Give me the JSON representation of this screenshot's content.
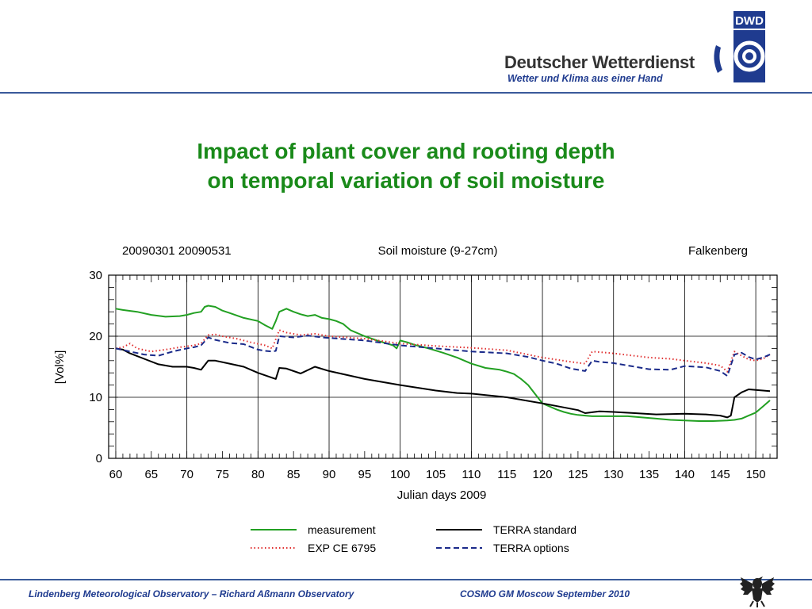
{
  "header": {
    "brand_name": "Deutscher Wetterdienst",
    "tagline": "Wetter und Klima aus einer Hand",
    "logo_text": "DWD",
    "accent_color": "#1f3b8f"
  },
  "slide": {
    "title_line1": "Impact of plant cover and rooting depth",
    "title_line2": "on temporal variation of soil moisture",
    "title_color": "#1a8a1a"
  },
  "chart_data": {
    "type": "line",
    "header_left": "20090301 20090531",
    "header_center": "Soil moisture (9-27cm)",
    "header_right": "Falkenberg",
    "xlabel": "Julian days 2009",
    "ylabel": "[Vol%]",
    "xlim": [
      59,
      153
    ],
    "ylim": [
      0,
      30
    ],
    "xticks": [
      60,
      65,
      70,
      75,
      80,
      85,
      90,
      95,
      100,
      105,
      110,
      115,
      120,
      125,
      130,
      135,
      140,
      145,
      150
    ],
    "yticks": [
      0,
      10,
      20,
      30
    ],
    "grid": true,
    "legend_position": "bottom",
    "series": [
      {
        "name": "measurement",
        "color": "#22a022",
        "style": "solid",
        "x": [
          60,
          61,
          63,
          65,
          67,
          69,
          70,
          71,
          72,
          72.5,
          73,
          74,
          75,
          76,
          78,
          80,
          81,
          82,
          82.5,
          83,
          84,
          85,
          86,
          87,
          88,
          89,
          90,
          91,
          92,
          93,
          95,
          97,
          99,
          99.5,
          100,
          101,
          102,
          104,
          106,
          108,
          110,
          112,
          114,
          115,
          116,
          117,
          118,
          119,
          120,
          121,
          122,
          123,
          124,
          125,
          126,
          127,
          128,
          130,
          132,
          134,
          136,
          138,
          140,
          142,
          144,
          146,
          147,
          148,
          149,
          150,
          151,
          152
        ],
        "y": [
          24.5,
          24.3,
          24.0,
          23.5,
          23.2,
          23.3,
          23.5,
          23.8,
          24.0,
          24.8,
          25.0,
          24.8,
          24.2,
          23.8,
          23.0,
          22.5,
          21.8,
          21.2,
          22.5,
          24.0,
          24.5,
          24.0,
          23.6,
          23.3,
          23.5,
          23.0,
          22.8,
          22.5,
          22.0,
          21.0,
          20.0,
          19.2,
          18.5,
          18.0,
          19.3,
          19.0,
          18.6,
          18.0,
          17.3,
          16.5,
          15.5,
          14.8,
          14.5,
          14.2,
          13.8,
          13.0,
          12.0,
          10.5,
          9.0,
          8.5,
          8.0,
          7.6,
          7.3,
          7.1,
          7.0,
          6.9,
          6.9,
          6.9,
          6.9,
          6.7,
          6.5,
          6.3,
          6.2,
          6.1,
          6.1,
          6.2,
          6.3,
          6.5,
          7.0,
          7.5,
          8.5,
          9.5
        ]
      },
      {
        "name": "TERRA standard",
        "color": "#000000",
        "style": "solid",
        "x": [
          60,
          61,
          62,
          64,
          66,
          68,
          70,
          71,
          72,
          73,
          74,
          76,
          78,
          80,
          82,
          82.5,
          83,
          84,
          86,
          88,
          90,
          95,
          100,
          105,
          108,
          110,
          115,
          120,
          125,
          126,
          128,
          130,
          133,
          136,
          140,
          143,
          145,
          146,
          146.5,
          147,
          148,
          149,
          150,
          151,
          152
        ],
        "y": [
          18.0,
          17.8,
          17.2,
          16.3,
          15.4,
          15.0,
          15.0,
          14.8,
          14.5,
          16.0,
          16.0,
          15.5,
          15.0,
          14.0,
          13.2,
          13.0,
          14.8,
          14.7,
          13.9,
          15.0,
          14.3,
          13.0,
          12.0,
          11.1,
          10.7,
          10.6,
          10.0,
          9.0,
          7.9,
          7.4,
          7.7,
          7.6,
          7.4,
          7.2,
          7.3,
          7.2,
          7.0,
          6.7,
          7.0,
          10.0,
          10.8,
          11.3,
          11.2,
          11.1,
          11.0
        ]
      },
      {
        "name": "EXP CE 6795",
        "color": "#e03030",
        "style": "dotted",
        "x": [
          60,
          61,
          62,
          63,
          65,
          67,
          69,
          71,
          72,
          73,
          74,
          75,
          77,
          79,
          81,
          82,
          82.5,
          83,
          84,
          86,
          88,
          90,
          95,
          100,
          105,
          110,
          115,
          120,
          124,
          126,
          127,
          128,
          130,
          135,
          138,
          140,
          143,
          145,
          146,
          147,
          148,
          149,
          150,
          151,
          152
        ],
        "y": [
          18.0,
          18.2,
          18.8,
          18.0,
          17.5,
          17.8,
          18.2,
          18.5,
          18.8,
          20.2,
          20.3,
          20.0,
          19.6,
          19.0,
          18.5,
          18.0,
          19.5,
          21.0,
          20.6,
          20.2,
          20.4,
          20.0,
          19.6,
          18.8,
          18.4,
          18.1,
          17.7,
          16.5,
          15.8,
          15.5,
          17.5,
          17.4,
          17.2,
          16.5,
          16.3,
          16.0,
          15.6,
          15.2,
          14.2,
          17.5,
          16.8,
          16.2,
          16.0,
          16.3,
          17.0
        ]
      },
      {
        "name": "TERRA options",
        "color": "#1a2a8a",
        "style": "dashed",
        "x": [
          60,
          62,
          64,
          66,
          68,
          70,
          71,
          72,
          73,
          74,
          76,
          78,
          80,
          81,
          82,
          82.5,
          83,
          85,
          87,
          89,
          95,
          100,
          105,
          110,
          115,
          118,
          120,
          122,
          124,
          126,
          127,
          128,
          130,
          133,
          135,
          138,
          140,
          143,
          145,
          146,
          147,
          148,
          149,
          150,
          151,
          152
        ],
        "y": [
          18.0,
          17.5,
          17.0,
          16.8,
          17.5,
          18.0,
          18.2,
          18.5,
          19.8,
          19.4,
          18.9,
          18.7,
          17.8,
          17.6,
          17.5,
          17.6,
          20.0,
          19.8,
          20.1,
          19.8,
          19.3,
          18.5,
          18.0,
          17.5,
          17.2,
          16.6,
          16.0,
          15.5,
          14.7,
          14.3,
          16.0,
          15.8,
          15.6,
          15.0,
          14.6,
          14.5,
          15.1,
          14.9,
          14.3,
          13.5,
          17.0,
          17.3,
          16.6,
          16.2,
          16.5,
          17.0
        ]
      }
    ]
  },
  "footer": {
    "left_text": "Lindenberg Meteorological Observatory – Richard Aßmann Observatory",
    "right_text": "COSMO GM Moscow September 2010"
  }
}
